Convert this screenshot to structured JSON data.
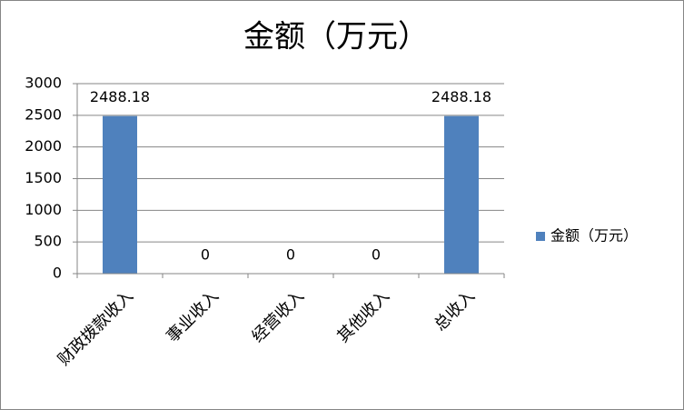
{
  "chart_data": {
    "type": "bar",
    "title": "金额（万元）",
    "categories": [
      "财政拨款收入",
      "事业收入",
      "经营收入",
      "其他收入",
      "总收入"
    ],
    "series": [
      {
        "name": "金额（万元）",
        "color": "#4f81bd",
        "values": [
          2488.18,
          0,
          0,
          0,
          2488.18
        ]
      }
    ],
    "ylim": [
      0,
      3000
    ],
    "yticks": [
      0,
      500,
      1000,
      1500,
      2000,
      2500,
      3000
    ],
    "grid": true,
    "legend": "right",
    "data_labels": true
  }
}
